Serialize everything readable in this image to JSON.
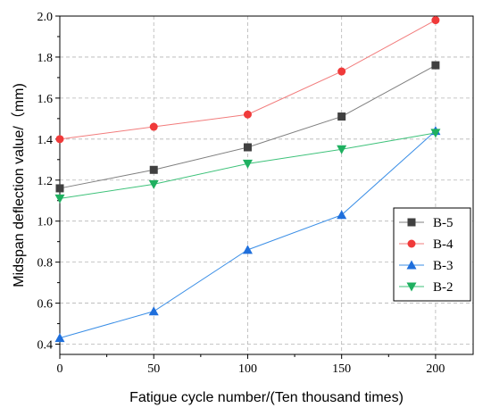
{
  "chart_data": {
    "type": "line",
    "title": "",
    "xlabel": "Fatigue cycle number/(Ten thousand times)",
    "ylabel": "Midspan deflection value/（mm)",
    "xlim": [
      0,
      220
    ],
    "ylim": [
      0.35,
      2.0
    ],
    "x_ticks": [
      0,
      50,
      100,
      150,
      200
    ],
    "y_ticks": [
      0.4,
      0.6,
      0.8,
      1.0,
      1.2,
      1.4,
      1.6,
      1.8,
      2.0
    ],
    "x_tick_labels": [
      "0",
      "50",
      "100",
      "150",
      "200"
    ],
    "y_tick_labels": [
      "0.4",
      "0.6",
      "0.8",
      "1.0",
      "1.2",
      "1.4",
      "1.6",
      "1.8",
      "2.0"
    ],
    "grid": true,
    "legend_position": "right",
    "x": [
      0,
      50,
      100,
      150,
      200
    ],
    "series": [
      {
        "name": "B-5",
        "values": [
          1.16,
          1.25,
          1.36,
          1.51,
          1.76
        ],
        "color": "#7f7f7f",
        "marker": "square",
        "marker_color": "#404040"
      },
      {
        "name": "B-4",
        "values": [
          1.4,
          1.46,
          1.52,
          1.73,
          1.98
        ],
        "color": "#f27c7c",
        "marker": "circle",
        "marker_color": "#f03a3a"
      },
      {
        "name": "B-3",
        "values": [
          0.43,
          0.56,
          0.86,
          1.03,
          1.44
        ],
        "color": "#3a8ee6",
        "marker": "triangle-up",
        "marker_color": "#1f6fdc"
      },
      {
        "name": "B-2",
        "values": [
          1.11,
          1.18,
          1.28,
          1.35,
          1.43
        ],
        "color": "#3ec27a",
        "marker": "triangle-down",
        "marker_color": "#1fb060"
      }
    ]
  }
}
